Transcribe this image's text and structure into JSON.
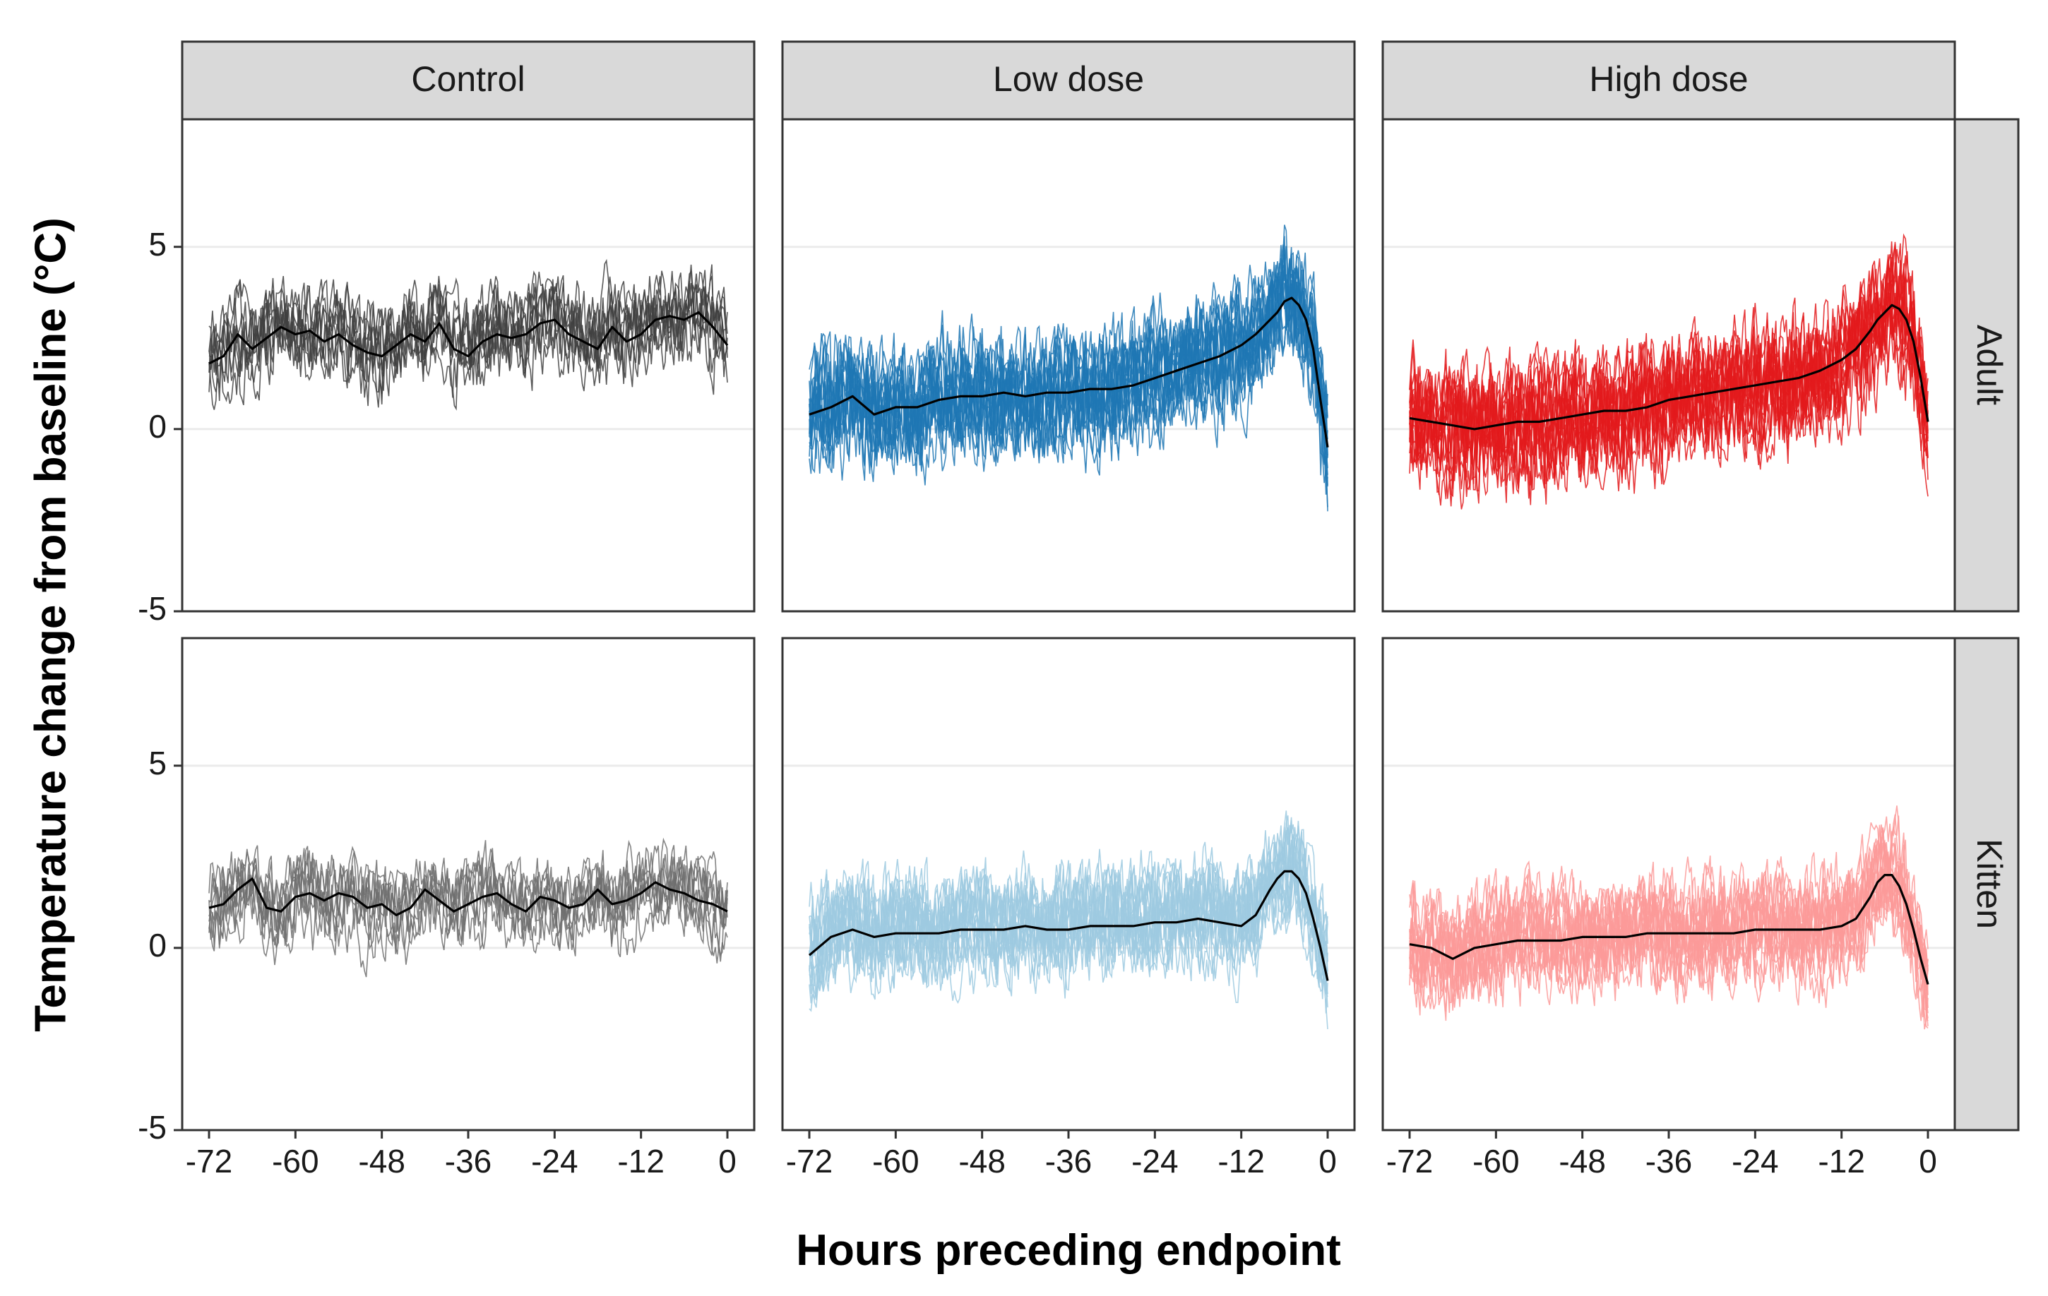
{
  "chart_data": {
    "type": "line",
    "layout": "facet-grid",
    "xlabel": "Hours preceding endpoint",
    "ylabel": "Temperature change from baseline (°C)",
    "xlim": [
      -72,
      0
    ],
    "ylim": [
      -5,
      8.5
    ],
    "x_ticks": [
      -72,
      -60,
      -48,
      -36,
      -24,
      -12,
      0
    ],
    "y_ticks": [
      -5,
      0,
      5
    ],
    "grid": "horizontal-major",
    "columns": [
      "Control",
      "Low dose",
      "High dose"
    ],
    "rows": [
      "Adult",
      "Kitten"
    ],
    "colors": {
      "Control-Adult": "#404040",
      "Control-Kitten": "#6e6e6e",
      "Low dose-Adult": "#1f77b4",
      "Low dose-Kitten": "#9ecae1",
      "High dose-Adult": "#e31a1c",
      "High dose-Kitten": "#fb9a99",
      "mean": "#000000",
      "strip_bg": "#d9d9d9"
    },
    "panels": [
      {
        "column": "Control",
        "row": "Adult",
        "n_traces": 8,
        "spread": 0.9,
        "mean": {
          "x": [
            -72,
            -70,
            -68,
            -66,
            -64,
            -62,
            -60,
            -58,
            -56,
            -54,
            -52,
            -50,
            -48,
            -46,
            -44,
            -42,
            -40,
            -38,
            -36,
            -34,
            -32,
            -30,
            -28,
            -26,
            -24,
            -22,
            -20,
            -18,
            -16,
            -14,
            -12,
            -10,
            -8,
            -6,
            -4,
            -2,
            0
          ],
          "y": [
            1.8,
            2.0,
            2.6,
            2.2,
            2.5,
            2.8,
            2.6,
            2.7,
            2.4,
            2.6,
            2.3,
            2.1,
            2.0,
            2.3,
            2.6,
            2.4,
            2.9,
            2.2,
            2.0,
            2.4,
            2.6,
            2.5,
            2.6,
            2.9,
            3.0,
            2.6,
            2.4,
            2.2,
            2.8,
            2.4,
            2.6,
            3.0,
            3.1,
            3.0,
            3.2,
            2.8,
            2.3
          ]
        }
      },
      {
        "column": "Low dose",
        "row": "Adult",
        "n_traces": 16,
        "spread": 1.2,
        "mean": {
          "x": [
            -72,
            -69,
            -66,
            -63,
            -60,
            -57,
            -54,
            -51,
            -48,
            -45,
            -42,
            -39,
            -36,
            -33,
            -30,
            -27,
            -24,
            -21,
            -18,
            -15,
            -12,
            -10,
            -8,
            -7,
            -6,
            -5,
            -4,
            -3,
            -2,
            -1,
            0
          ],
          "y": [
            0.4,
            0.6,
            0.9,
            0.4,
            0.6,
            0.6,
            0.8,
            0.9,
            0.9,
            1.0,
            0.9,
            1.0,
            1.0,
            1.1,
            1.1,
            1.2,
            1.4,
            1.6,
            1.8,
            2.0,
            2.3,
            2.6,
            3.0,
            3.2,
            3.5,
            3.6,
            3.4,
            3.0,
            2.2,
            0.8,
            -0.5
          ]
        }
      },
      {
        "column": "High dose",
        "row": "Adult",
        "n_traces": 16,
        "spread": 1.2,
        "mean": {
          "x": [
            -72,
            -69,
            -66,
            -63,
            -60,
            -57,
            -54,
            -51,
            -48,
            -45,
            -42,
            -39,
            -36,
            -33,
            -30,
            -27,
            -24,
            -21,
            -18,
            -15,
            -12,
            -10,
            -8,
            -7,
            -6,
            -5,
            -4,
            -3,
            -2,
            -1,
            0
          ],
          "y": [
            0.3,
            0.2,
            0.1,
            0.0,
            0.1,
            0.2,
            0.2,
            0.3,
            0.4,
            0.5,
            0.5,
            0.6,
            0.8,
            0.9,
            1.0,
            1.1,
            1.2,
            1.3,
            1.4,
            1.6,
            1.9,
            2.2,
            2.7,
            3.0,
            3.2,
            3.4,
            3.3,
            3.0,
            2.4,
            1.4,
            0.2
          ]
        }
      },
      {
        "column": "Control",
        "row": "Kitten",
        "n_traces": 8,
        "spread": 0.8,
        "mean": {
          "x": [
            -72,
            -70,
            -68,
            -66,
            -64,
            -62,
            -60,
            -58,
            -56,
            -54,
            -52,
            -50,
            -48,
            -46,
            -44,
            -42,
            -40,
            -38,
            -36,
            -34,
            -32,
            -30,
            -28,
            -26,
            -24,
            -22,
            -20,
            -18,
            -16,
            -14,
            -12,
            -10,
            -8,
            -6,
            -4,
            -2,
            0
          ],
          "y": [
            1.1,
            1.2,
            1.6,
            1.9,
            1.1,
            1.0,
            1.4,
            1.5,
            1.3,
            1.5,
            1.4,
            1.1,
            1.2,
            0.9,
            1.1,
            1.6,
            1.3,
            1.0,
            1.2,
            1.4,
            1.5,
            1.2,
            1.0,
            1.4,
            1.3,
            1.1,
            1.2,
            1.6,
            1.2,
            1.3,
            1.5,
            1.8,
            1.6,
            1.5,
            1.3,
            1.2,
            1.0
          ]
        }
      },
      {
        "column": "Low dose",
        "row": "Kitten",
        "n_traces": 16,
        "spread": 1.0,
        "mean": {
          "x": [
            -72,
            -69,
            -66,
            -63,
            -60,
            -57,
            -54,
            -51,
            -48,
            -45,
            -42,
            -39,
            -36,
            -33,
            -30,
            -27,
            -24,
            -21,
            -18,
            -15,
            -12,
            -10,
            -8,
            -7,
            -6,
            -5,
            -4,
            -3,
            -2,
            -1,
            0
          ],
          "y": [
            -0.2,
            0.3,
            0.5,
            0.3,
            0.4,
            0.4,
            0.4,
            0.5,
            0.5,
            0.5,
            0.6,
            0.5,
            0.5,
            0.6,
            0.6,
            0.6,
            0.7,
            0.7,
            0.8,
            0.7,
            0.6,
            0.9,
            1.6,
            1.9,
            2.1,
            2.1,
            1.9,
            1.5,
            0.8,
            0.0,
            -0.9
          ]
        }
      },
      {
        "column": "High dose",
        "row": "Kitten",
        "n_traces": 16,
        "spread": 1.0,
        "mean": {
          "x": [
            -72,
            -69,
            -66,
            -63,
            -60,
            -57,
            -54,
            -51,
            -48,
            -45,
            -42,
            -39,
            -36,
            -33,
            -30,
            -27,
            -24,
            -21,
            -18,
            -15,
            -12,
            -10,
            -8,
            -7,
            -6,
            -5,
            -4,
            -3,
            -2,
            -1,
            0
          ],
          "y": [
            0.1,
            0.0,
            -0.3,
            0.0,
            0.1,
            0.2,
            0.2,
            0.2,
            0.3,
            0.3,
            0.3,
            0.4,
            0.4,
            0.4,
            0.4,
            0.4,
            0.5,
            0.5,
            0.5,
            0.5,
            0.6,
            0.8,
            1.4,
            1.8,
            2.0,
            2.0,
            1.7,
            1.2,
            0.5,
            -0.3,
            -1.0
          ]
        }
      }
    ]
  }
}
